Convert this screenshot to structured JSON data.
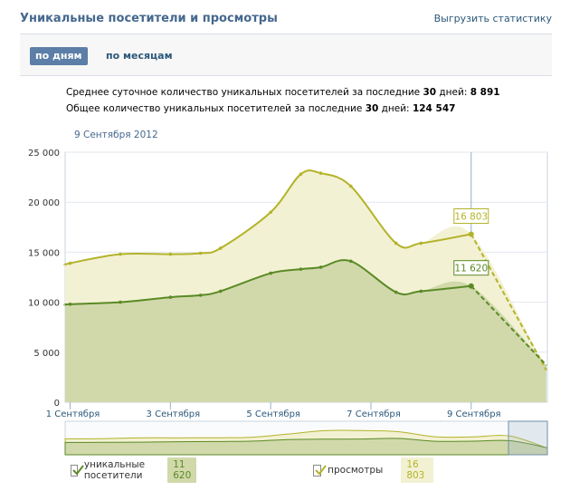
{
  "header": {
    "title": "Уникальные посетители и просмотры",
    "export_link": "Выгрузить статистику"
  },
  "tabs": [
    {
      "label": "по дням",
      "active": true
    },
    {
      "label": "по месяцам",
      "active": false
    }
  ],
  "summary": {
    "line1_prefix": "Среднее суточное количество уникальных посетителей за последние ",
    "line1_days": "30",
    "line1_mid": " дней: ",
    "line1_value": "8 891",
    "line2_prefix": "Общее количество уникальных посетителей за последние ",
    "line2_days": "30",
    "line2_mid": " дней: ",
    "line2_value": "124 547"
  },
  "date_label": "9 Сентября 2012",
  "legend": {
    "visitors_label": "уникальные посетители",
    "visitors_value": "11 620",
    "views_label": "просмотры",
    "views_value": "16 803"
  },
  "colors": {
    "views_line": "#b3b32b",
    "views_fill": "#f3f1d3",
    "visitors_line": "#5a8a25",
    "visitors_fill": "#d1d9ab",
    "axis_blue": "#7d9ec0"
  },
  "chart_data": {
    "type": "area",
    "ylim": [
      0,
      25000
    ],
    "yticks": [
      0,
      5000,
      10000,
      15000,
      20000,
      25000
    ],
    "ytick_labels": [
      "0",
      "5 000",
      "10 000",
      "15 000",
      "20 000",
      "25 000"
    ],
    "xlim": [
      0.9,
      10.52
    ],
    "xticks": [
      1,
      3,
      5,
      7,
      9
    ],
    "xtick_labels": [
      "1 Сентября",
      "3 Сентября",
      "5 Сентября",
      "7 Сентября",
      "9 Сентября"
    ],
    "x": [
      0.9,
      1,
      2,
      3,
      3.6,
      4,
      5,
      5.6,
      6,
      6.6,
      7.5,
      8,
      9,
      10.5
    ],
    "series": [
      {
        "name": "просмотры",
        "values": [
          13700,
          13900,
          14800,
          14800,
          14900,
          15400,
          19000,
          22800,
          22900,
          21600,
          15900,
          15900,
          16803,
          3200
        ],
        "end_label": "16 803"
      },
      {
        "name": "уникальные посетители",
        "values": [
          9700,
          9800,
          10000,
          10500,
          10700,
          11100,
          12900,
          13300,
          13500,
          14100,
          11000,
          11100,
          11620,
          3700
        ],
        "end_label": "11 620"
      }
    ],
    "today_x": 9
  }
}
